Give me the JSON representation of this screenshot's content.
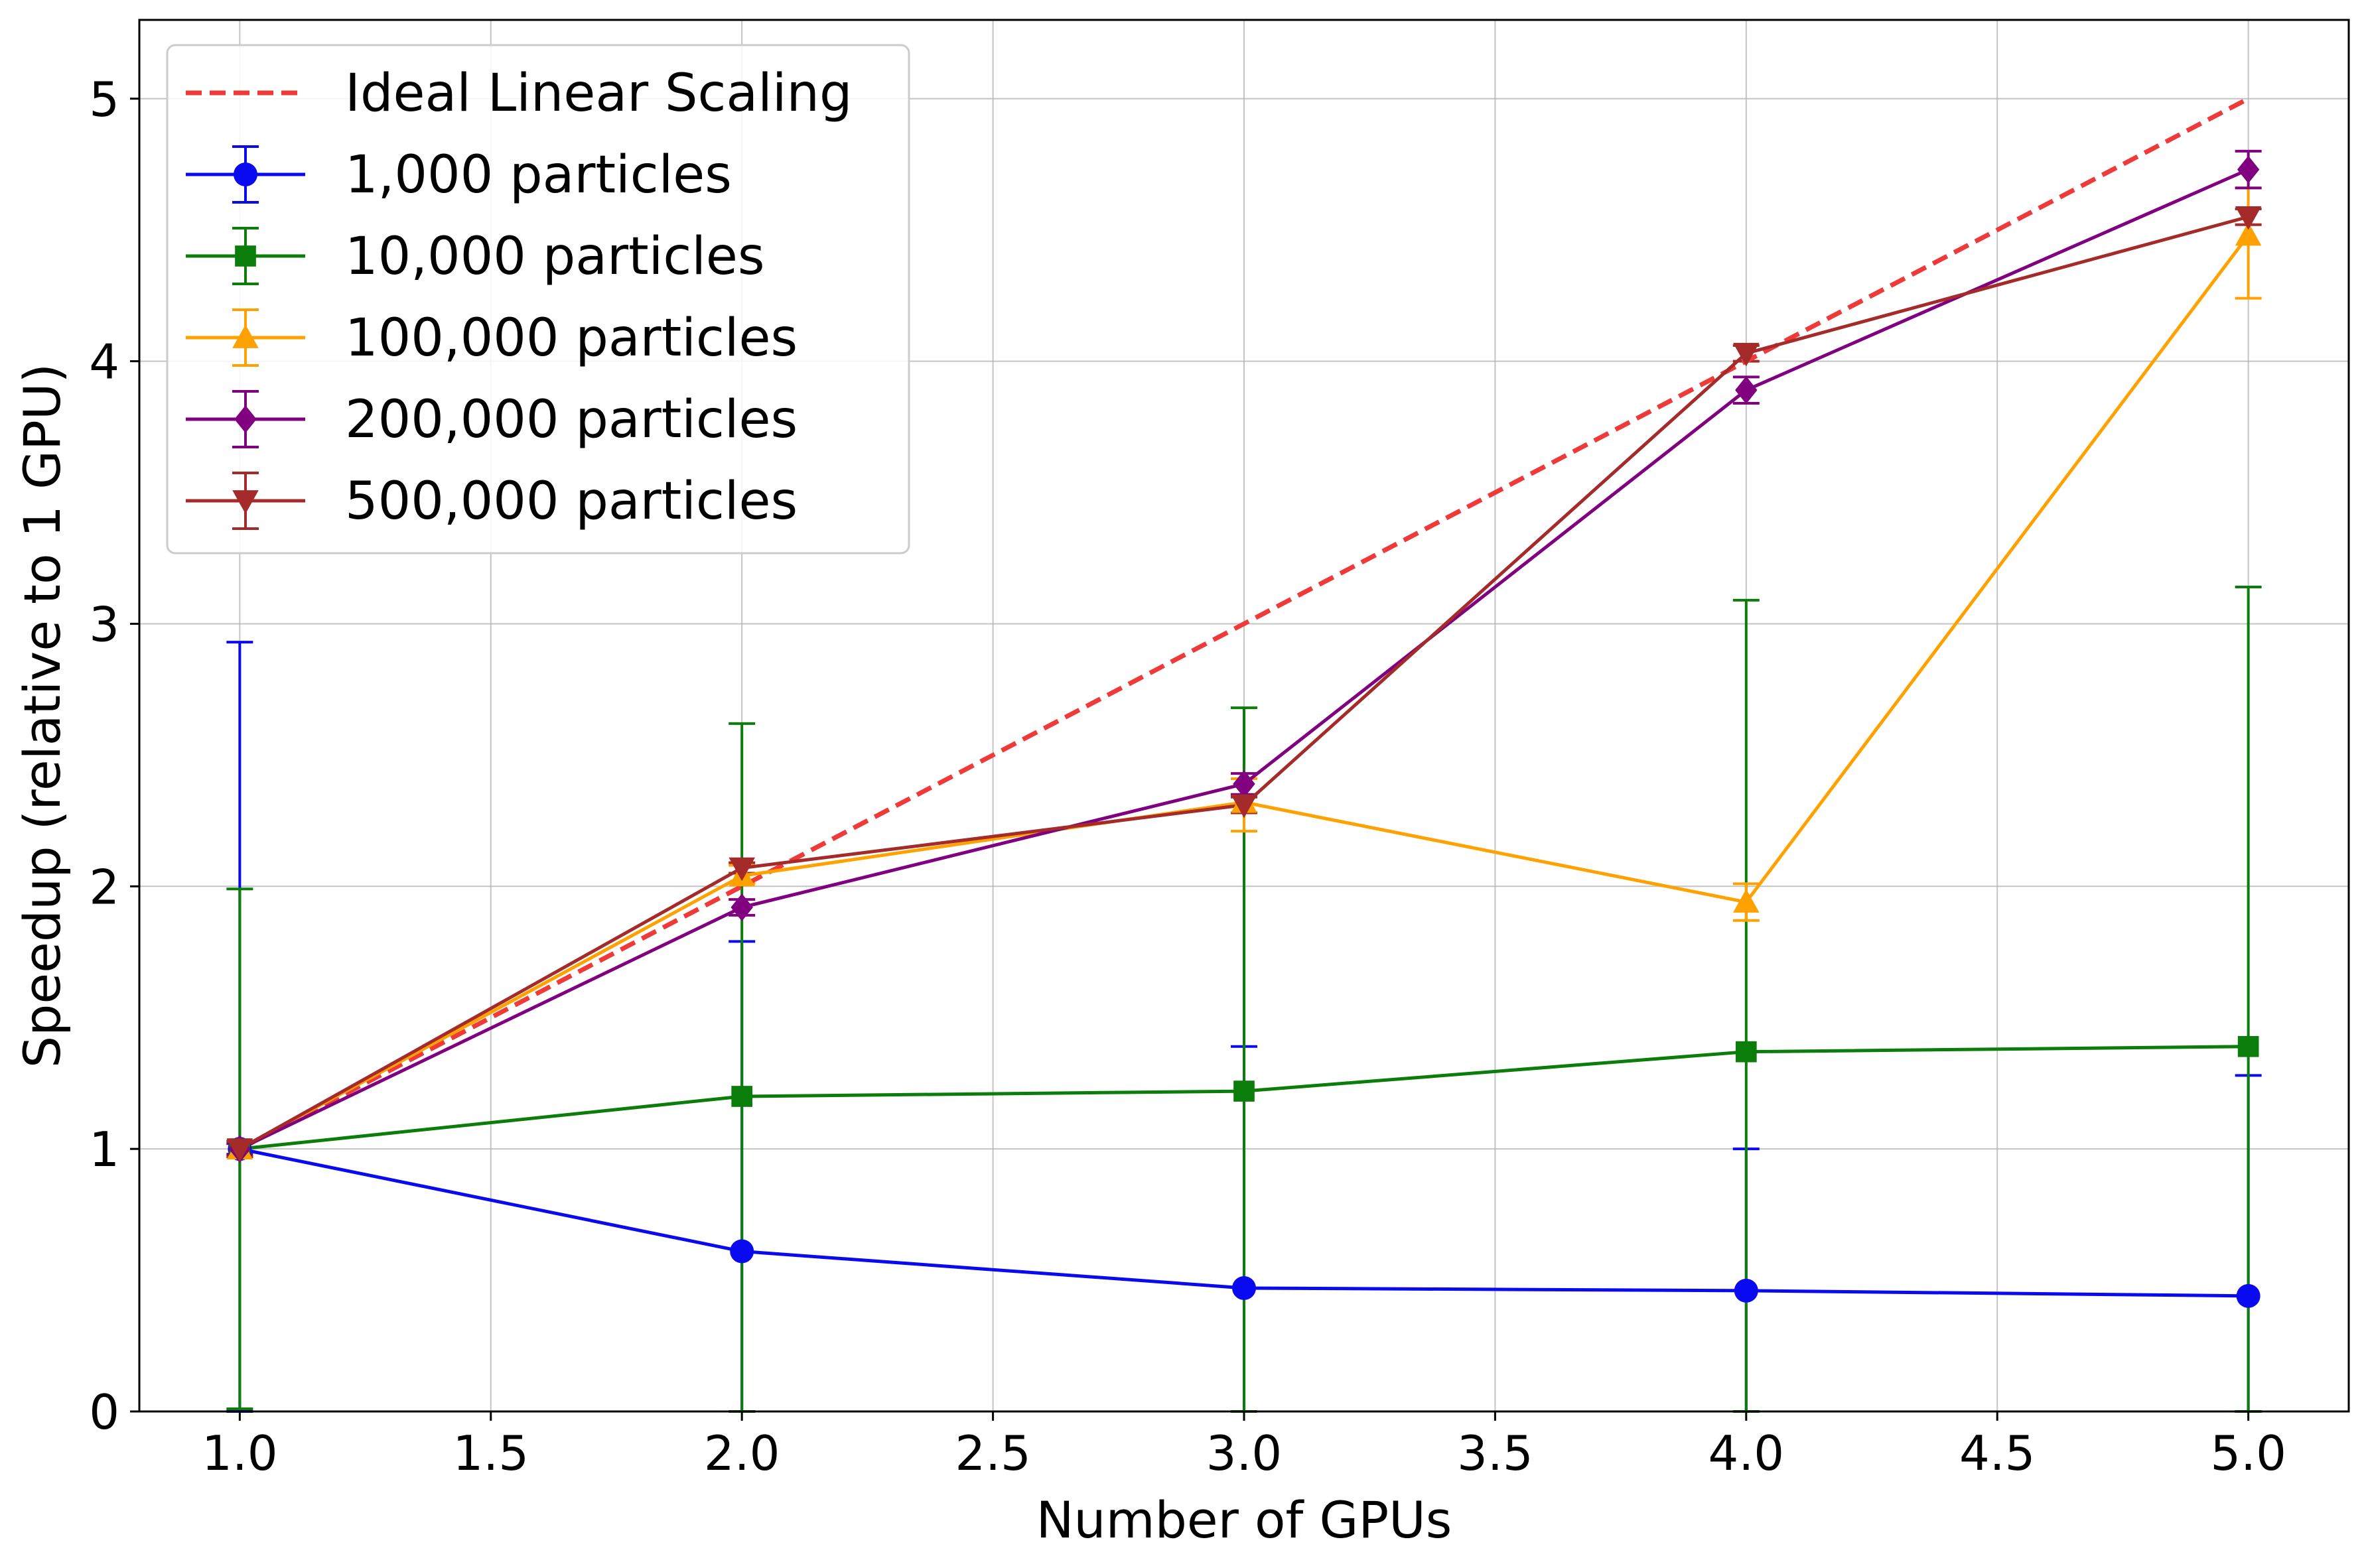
{
  "chart_data": {
    "type": "line",
    "title": "",
    "xlabel": "Number of GPUs",
    "ylabel": "Speedup (relative to 1 GPU)",
    "xlim": [
      0.8,
      5.2
    ],
    "ylim": [
      0,
      5.3
    ],
    "grid": true,
    "legend_position": "top-left",
    "x_ticks": [
      1.0,
      1.5,
      2.0,
      2.5,
      3.0,
      3.5,
      4.0,
      4.5,
      5.0
    ],
    "x_tick_labels": [
      "1.0",
      "1.5",
      "2.0",
      "2.5",
      "3.0",
      "3.5",
      "4.0",
      "4.5",
      "5.0"
    ],
    "y_ticks": [
      0,
      1,
      2,
      3,
      4,
      5
    ],
    "y_tick_labels": [
      "0",
      "1",
      "2",
      "3",
      "4",
      "5"
    ],
    "x": [
      1,
      2,
      3,
      4,
      5
    ],
    "series": [
      {
        "name": "Ideal Linear Scaling",
        "color": "#f03a3a",
        "dashed": true,
        "marker": "none",
        "values": [
          1,
          2,
          3,
          4,
          5
        ]
      },
      {
        "name": "1,000 particles",
        "color": "#0a0af0",
        "dashed": false,
        "marker": "circle",
        "values": [
          1.0,
          0.61,
          0.47,
          0.46,
          0.44
        ],
        "error_low": [
          0.0,
          0.0,
          0.0,
          0.0,
          0.0
        ],
        "error_high": [
          2.93,
          1.79,
          1.39,
          1.0,
          1.28
        ]
      },
      {
        "name": "10,000 particles",
        "color": "#0b7d0b",
        "dashed": false,
        "marker": "square",
        "values": [
          1.0,
          1.2,
          1.22,
          1.37,
          1.39
        ],
        "error_low": [
          0.01,
          0.0,
          0.0,
          0.0,
          0.0
        ],
        "error_high": [
          1.99,
          2.62,
          2.68,
          3.09,
          3.14
        ]
      },
      {
        "name": "100,000 particles",
        "color": "#ffa100",
        "dashed": false,
        "marker": "triangle-up",
        "values": [
          1.0,
          2.04,
          2.32,
          1.94,
          4.48
        ],
        "error_low": [
          0.97,
          2.01,
          2.21,
          1.87,
          4.24
        ],
        "error_high": [
          1.03,
          2.08,
          2.41,
          2.01,
          4.66
        ]
      },
      {
        "name": "200,000 particles",
        "color": "#800080",
        "dashed": false,
        "marker": "diamond",
        "values": [
          1.0,
          1.92,
          2.39,
          3.89,
          4.73
        ],
        "error_low": [
          0.98,
          1.89,
          2.35,
          3.84,
          4.66
        ],
        "error_high": [
          1.02,
          1.95,
          2.43,
          3.94,
          4.8
        ]
      },
      {
        "name": "500,000 particles",
        "color": "#a52a2a",
        "dashed": false,
        "marker": "triangle-down",
        "values": [
          1.0,
          2.07,
          2.31,
          4.03,
          4.55
        ],
        "error_low": [
          0.97,
          2.05,
          2.28,
          4.0,
          4.52
        ],
        "error_high": [
          1.03,
          2.09,
          2.34,
          4.06,
          4.58
        ]
      }
    ]
  }
}
